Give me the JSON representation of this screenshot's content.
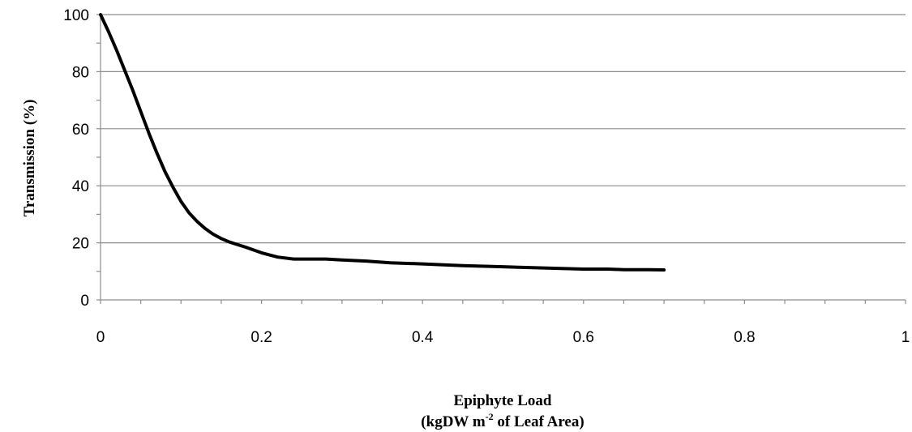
{
  "chart_data": {
    "type": "line",
    "title": "",
    "xlabel": "Epiphyte Load",
    "xlabel_line2_pre": "(kgDW m",
    "xlabel_line2_sup": "-2",
    "xlabel_line2_post": " of Leaf Area)",
    "ylabel": "Transmission (%)",
    "xlim": [
      0,
      1
    ],
    "ylim": [
      0,
      100
    ],
    "x_ticks": [
      0,
      0.2,
      0.4,
      0.6,
      0.8,
      1
    ],
    "x_tick_labels": [
      "0",
      "0.2",
      "0.4",
      "0.6",
      "0.8",
      "1"
    ],
    "y_ticks": [
      0,
      20,
      40,
      60,
      80,
      100
    ],
    "y_tick_labels": [
      "0",
      "20",
      "40",
      "60",
      "80",
      "100"
    ],
    "grid": "horizontal",
    "line_color": "#000000",
    "grid_color": "#8c8c8c",
    "series": [
      {
        "x": [
          0,
          0.01,
          0.02,
          0.03,
          0.04,
          0.05,
          0.06,
          0.07,
          0.08,
          0.09,
          0.1,
          0.11,
          0.12,
          0.13,
          0.14,
          0.15,
          0.16,
          0.18,
          0.2,
          0.22,
          0.24,
          0.26,
          0.28,
          0.3,
          0.33,
          0.36,
          0.4,
          0.45,
          0.5,
          0.55,
          0.6,
          0.63,
          0.65,
          0.68,
          0.7
        ],
        "y": [
          100,
          94,
          87.5,
          80.5,
          73.5,
          66,
          58.5,
          51.5,
          45,
          39.5,
          34.5,
          30.5,
          27.5,
          25,
          23,
          21.5,
          20.3,
          18.5,
          16.5,
          15,
          14.3,
          14.3,
          14.3,
          14,
          13.6,
          13,
          12.6,
          12,
          11.6,
          11.2,
          10.8,
          10.8,
          10.6,
          10.6,
          10.5
        ]
      }
    ]
  }
}
